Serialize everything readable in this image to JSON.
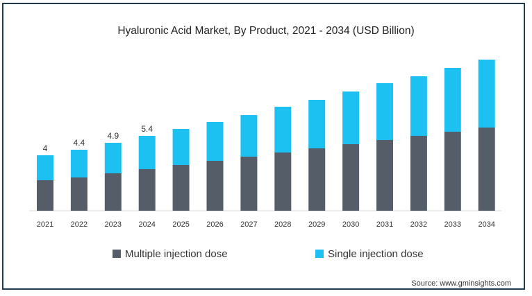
{
  "chart_data": {
    "type": "bar",
    "stacked": true,
    "title": "Hyaluronic Acid Market, By Product, 2021 - 2034 (USD Billion)",
    "xlabel": "",
    "ylabel": "",
    "categories": [
      "2021",
      "2022",
      "2023",
      "2024",
      "2025",
      "2026",
      "2027",
      "2028",
      "2029",
      "2030",
      "2031",
      "2032",
      "2033",
      "2034"
    ],
    "series": [
      {
        "name": "Multiple injection dose",
        "color": "#555e68",
        "values": [
          2.2,
          2.4,
          2.7,
          3.0,
          3.3,
          3.6,
          3.9,
          4.2,
          4.5,
          4.8,
          5.1,
          5.4,
          5.7,
          6.0
        ]
      },
      {
        "name": "Single injection dose",
        "color": "#1cc1f2",
        "values": [
          1.8,
          2.0,
          2.2,
          2.4,
          2.6,
          2.8,
          3.0,
          3.3,
          3.5,
          3.8,
          4.1,
          4.3,
          4.6,
          4.9
        ]
      }
    ],
    "data_labels": [
      "4",
      "4.4",
      "4.9",
      "5.4"
    ],
    "ylim": [
      0,
      12
    ],
    "grid": false,
    "legend_position": "bottom"
  },
  "source": "Source: www.gminsights.com"
}
